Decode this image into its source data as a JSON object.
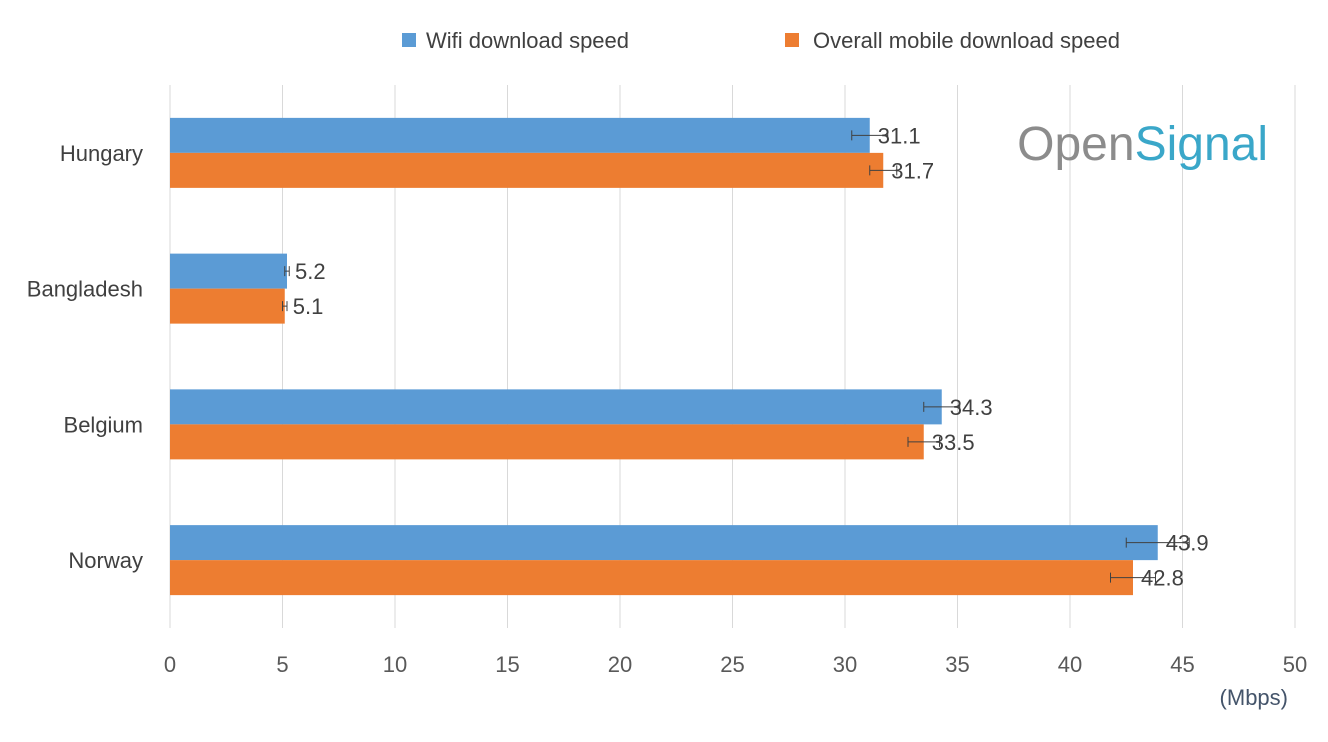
{
  "chart_data": {
    "type": "bar",
    "orientation": "horizontal",
    "categories": [
      "Hungary",
      "Bangladesh",
      "Belgium",
      "Norway"
    ],
    "series": [
      {
        "name": "Wifi download speed",
        "color": "#5b9bd5",
        "values": [
          31.1,
          5.2,
          34.3,
          43.9
        ],
        "error": [
          0.8,
          0.1,
          0.8,
          1.4
        ]
      },
      {
        "name": "Overall mobile download speed",
        "color": "#ed7d31",
        "values": [
          31.7,
          5.1,
          33.5,
          42.8
        ],
        "error": [
          0.6,
          0.1,
          0.7,
          1.0
        ]
      }
    ],
    "xlim": [
      0,
      50
    ],
    "xticks": [
      0,
      5,
      10,
      15,
      20,
      25,
      30,
      35,
      40,
      45,
      50
    ],
    "xunit": "(Mbps)",
    "grid": true,
    "legend_position": "top"
  },
  "logo": {
    "part1": "Open",
    "part2": "Signal",
    "color1": "#8c8c8c",
    "color2": "#3aa7c9"
  }
}
